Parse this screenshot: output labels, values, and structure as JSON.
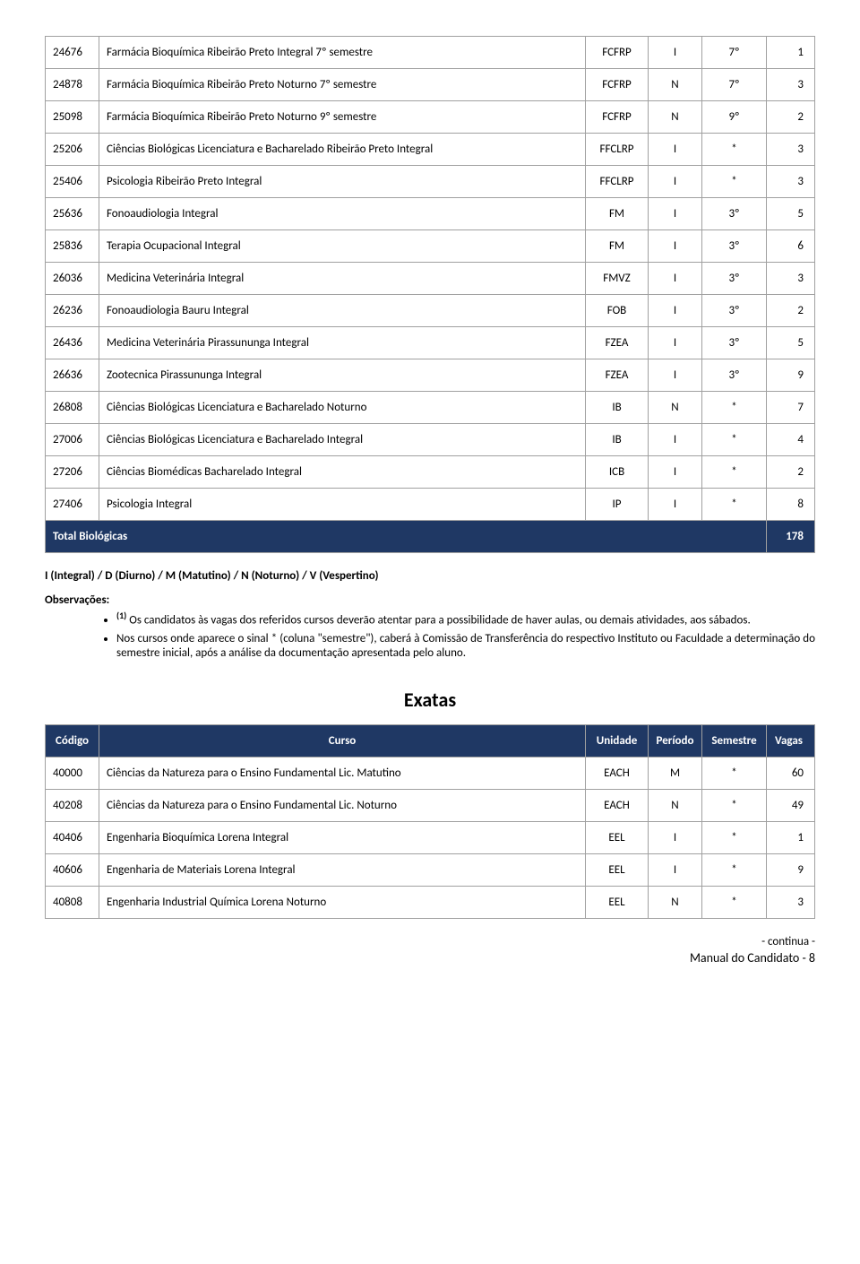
{
  "colors": {
    "header_bg": "#1f3864",
    "header_fg": "#ffffff",
    "border": "#a0a0a0",
    "text": "#000000",
    "page_bg": "#ffffff"
  },
  "table1": {
    "rows": [
      {
        "code": "24676",
        "curso": "Farmácia Bioquímica Ribeirão Preto Integral 7º semestre",
        "un": "FCFRP",
        "per": "I",
        "sem": "7º",
        "vag": "1"
      },
      {
        "code": "24878",
        "curso": "Farmácia Bioquímica Ribeirão Preto Noturno 7º semestre",
        "un": "FCFRP",
        "per": "N",
        "sem": "7º",
        "vag": "3"
      },
      {
        "code": "25098",
        "curso": "Farmácia Bioquímica Ribeirão Preto Noturno 9º semestre",
        "un": "FCFRP",
        "per": "N",
        "sem": "9º",
        "vag": "2"
      },
      {
        "code": "25206",
        "curso": "Ciências Biológicas Licenciatura e Bacharelado Ribeirão Preto Integral",
        "un": "FFCLRP",
        "per": "I",
        "sem": "*",
        "vag": "3"
      },
      {
        "code": "25406",
        "curso": "Psicologia Ribeirão Preto Integral",
        "un": "FFCLRP",
        "per": "I",
        "sem": "*",
        "vag": "3"
      },
      {
        "code": "25636",
        "curso": "Fonoaudiologia Integral",
        "un": "FM",
        "per": "I",
        "sem": "3º",
        "vag": "5"
      },
      {
        "code": "25836",
        "curso": "Terapia Ocupacional Integral",
        "un": "FM",
        "per": "I",
        "sem": "3º",
        "vag": "6"
      },
      {
        "code": "26036",
        "curso": "Medicina Veterinária Integral",
        "un": "FMVZ",
        "per": "I",
        "sem": "3º",
        "vag": "3"
      },
      {
        "code": "26236",
        "curso": "Fonoaudiologia Bauru Integral",
        "un": "FOB",
        "per": "I",
        "sem": "3º",
        "vag": "2"
      },
      {
        "code": "26436",
        "curso": "Medicina Veterinária Pirassununga Integral",
        "un": "FZEA",
        "per": "I",
        "sem": "3º",
        "vag": "5"
      },
      {
        "code": "26636",
        "curso": "Zootecnica Pirassununga Integral",
        "un": "FZEA",
        "per": "I",
        "sem": "3º",
        "vag": "9"
      },
      {
        "code": "26808",
        "curso": "Ciências Biológicas Licenciatura e Bacharelado Noturno",
        "un": "IB",
        "per": "N",
        "sem": "*",
        "vag": "7"
      },
      {
        "code": "27006",
        "curso": "Ciências Biológicas Licenciatura e Bacharelado Integral",
        "un": "IB",
        "per": "I",
        "sem": "*",
        "vag": "4"
      },
      {
        "code": "27206",
        "curso": "Ciências Biomédicas Bacharelado Integral",
        "un": "ICB",
        "per": "I",
        "sem": "*",
        "vag": "2"
      },
      {
        "code": "27406",
        "curso": "Psicologia Integral",
        "un": "IP",
        "per": "I",
        "sem": "*",
        "vag": "8"
      }
    ],
    "total_label": "Total Biológicas",
    "total_value": "178"
  },
  "legend": "I (Integral) / D (Diurno) / M (Matutino) / N (Noturno) / V (Vespertino)",
  "obs_head": "Observações:",
  "obs": {
    "sup": "(1)",
    "item1_rest": " Os candidatos às vagas dos referidos cursos deverão atentar para a possibilidade de haver aulas, ou demais atividades, aos sábados.",
    "item2": "Nos cursos onde aparece o sinal * (coluna \"semestre\"), caberá à Comissão de Transferência do respectivo Instituto ou Faculdade a determinação do semestre inicial, após a análise da documentação apresentada pelo aluno."
  },
  "section_title": "Exatas",
  "table2": {
    "headers": {
      "code": "Código",
      "curso": "Curso",
      "un": "Unidade",
      "per": "Período",
      "sem": "Semestre",
      "vag": "Vagas"
    },
    "rows": [
      {
        "code": "40000",
        "curso": "Ciências da Natureza para o Ensino Fundamental Lic. Matutino",
        "un": "EACH",
        "per": "M",
        "sem": "*",
        "vag": "60"
      },
      {
        "code": "40208",
        "curso": "Ciências da Natureza para o Ensino Fundamental Lic. Noturno",
        "un": "EACH",
        "per": "N",
        "sem": "*",
        "vag": "49"
      },
      {
        "code": "40406",
        "curso": "Engenharia Bioquímica Lorena Integral",
        "un": "EEL",
        "per": "I",
        "sem": "*",
        "vag": "1"
      },
      {
        "code": "40606",
        "curso": "Engenharia de Materiais Lorena Integral",
        "un": "EEL",
        "per": "I",
        "sem": "*",
        "vag": "9"
      },
      {
        "code": "40808",
        "curso": "Engenharia Industrial Química Lorena Noturno",
        "un": "EEL",
        "per": "N",
        "sem": "*",
        "vag": "3"
      }
    ]
  },
  "continua": "- continua -",
  "footer": "Manual do Candidato - 8"
}
